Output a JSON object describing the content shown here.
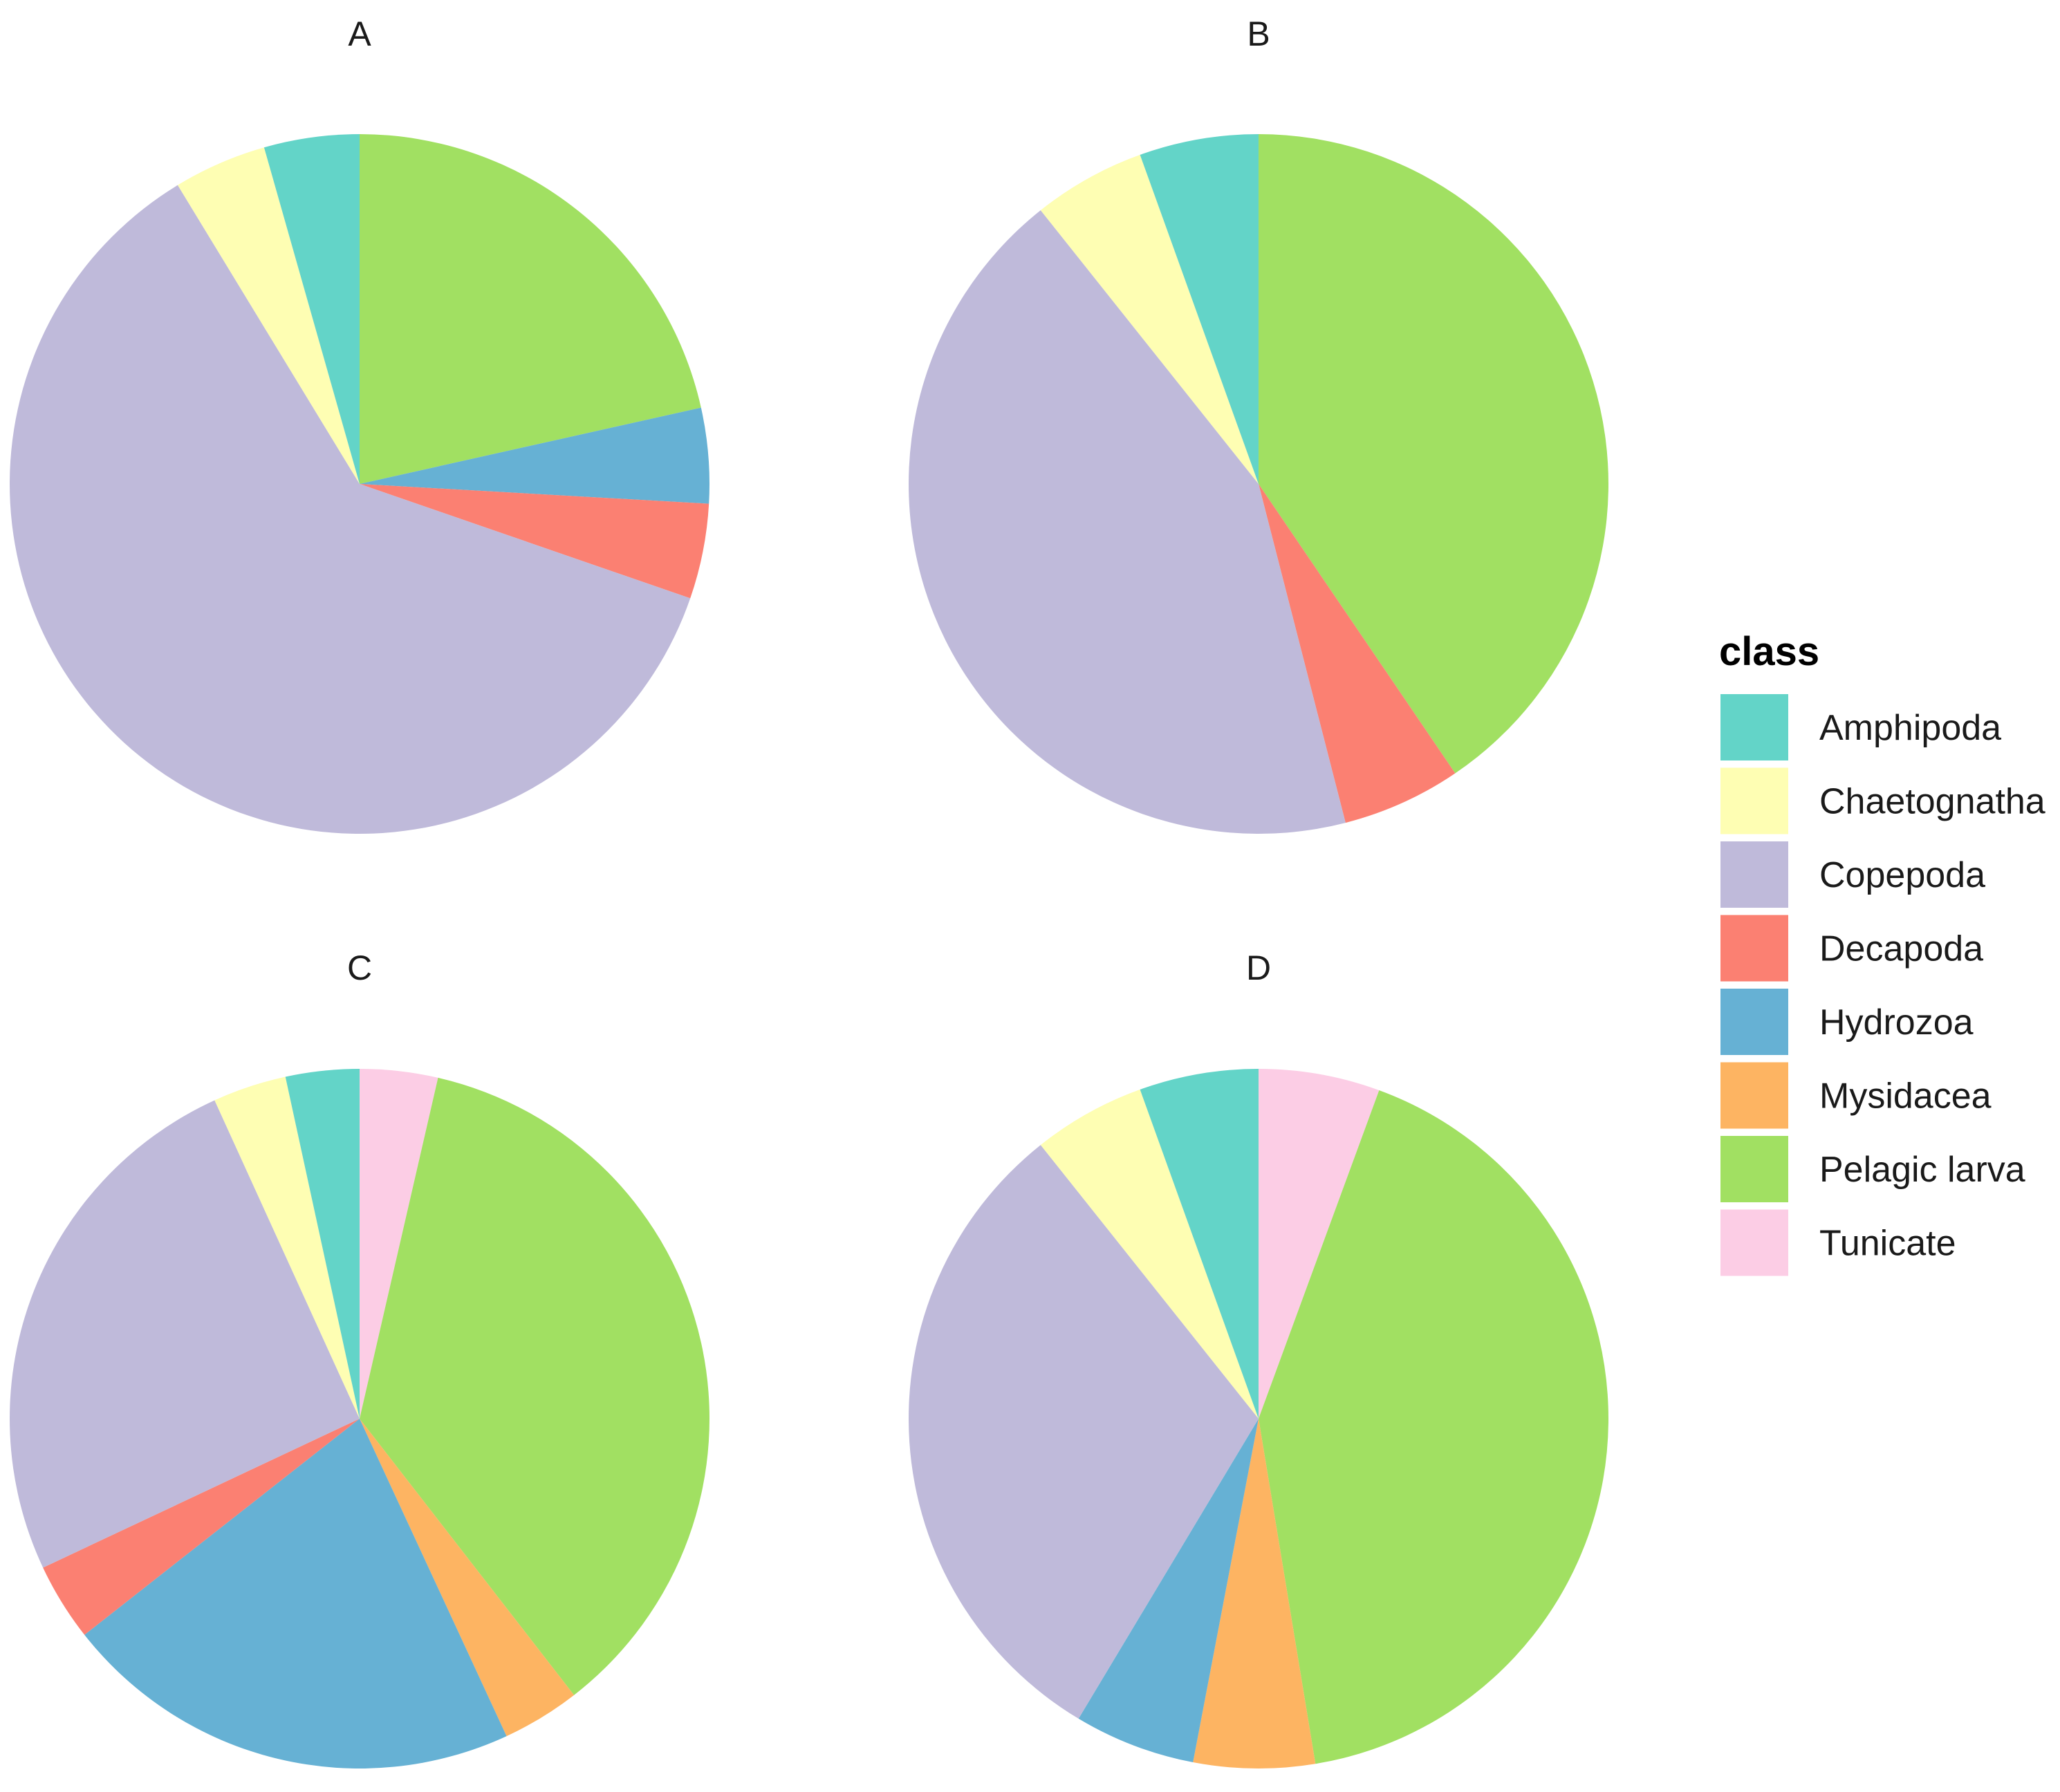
{
  "chart_data": {
    "type": "pie",
    "legend": {
      "title": "class",
      "placement": "right",
      "entries": [
        {
          "label": "Amphipoda",
          "color": "#63D4C8"
        },
        {
          "label": "Chaetognatha",
          "color": "#FEFEB3"
        },
        {
          "label": "Copepoda",
          "color": "#BFBADA"
        },
        {
          "label": "Decapoda",
          "color": "#FB8072"
        },
        {
          "label": "Hydrozoa",
          "color": "#66B1D4"
        },
        {
          "label": "Mysidacea",
          "color": "#FDB462"
        },
        {
          "label": "Pelagic larva",
          "color": "#A1E062"
        },
        {
          "label": "Tunicate",
          "color": "#FCCDE5"
        }
      ]
    },
    "panels": [
      {
        "title": "A",
        "slices": [
          {
            "label": "Pelagic larva",
            "value": 21.5
          },
          {
            "label": "Hydrozoa",
            "value": 4.4
          },
          {
            "label": "Decapoda",
            "value": 4.4
          },
          {
            "label": "Copepoda",
            "value": 61.0
          },
          {
            "label": "Chaetognatha",
            "value": 4.3
          },
          {
            "label": "Amphipoda",
            "value": 4.4
          }
        ]
      },
      {
        "title": "B",
        "slices": [
          {
            "label": "Pelagic larva",
            "value": 40.5
          },
          {
            "label": "Decapoda",
            "value": 5.5
          },
          {
            "label": "Copepoda",
            "value": 43.3
          },
          {
            "label": "Chaetognatha",
            "value": 5.2
          },
          {
            "label": "Amphipoda",
            "value": 5.5
          }
        ]
      },
      {
        "title": "C",
        "slices": [
          {
            "label": "Tunicate",
            "value": 3.6
          },
          {
            "label": "Pelagic larva",
            "value": 35.9
          },
          {
            "label": "Mysidacea",
            "value": 3.6
          },
          {
            "label": "Hydrozoa",
            "value": 21.3
          },
          {
            "label": "Decapoda",
            "value": 3.6
          },
          {
            "label": "Copepoda",
            "value": 25.2
          },
          {
            "label": "Chaetognatha",
            "value": 3.4
          },
          {
            "label": "Amphipoda",
            "value": 3.4
          }
        ]
      },
      {
        "title": "D",
        "slices": [
          {
            "label": "Tunicate",
            "value": 5.6
          },
          {
            "label": "Pelagic larva",
            "value": 41.8
          },
          {
            "label": "Mysidacea",
            "value": 5.6
          },
          {
            "label": "Hydrozoa",
            "value": 5.6
          },
          {
            "label": "Copepoda",
            "value": 30.7
          },
          {
            "label": "Chaetognatha",
            "value": 5.2
          },
          {
            "label": "Amphipoda",
            "value": 5.5
          }
        ]
      }
    ]
  }
}
